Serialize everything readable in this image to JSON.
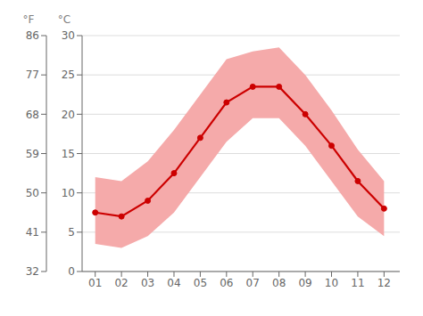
{
  "chart_data": {
    "type": "line",
    "x": [
      1,
      2,
      3,
      4,
      5,
      6,
      7,
      8,
      9,
      10,
      11,
      12
    ],
    "xlim": [
      0.5,
      12.6
    ],
    "xticks": [
      {
        "value": 1,
        "label": "01"
      },
      {
        "value": 2,
        "label": "02"
      },
      {
        "value": 3,
        "label": "03"
      },
      {
        "value": 4,
        "label": "04"
      },
      {
        "value": 5,
        "label": "05"
      },
      {
        "value": 6,
        "label": "06"
      },
      {
        "value": 7,
        "label": "07"
      },
      {
        "value": 8,
        "label": "08"
      },
      {
        "value": 9,
        "label": "09"
      },
      {
        "value": 10,
        "label": "10"
      },
      {
        "value": 11,
        "label": "11"
      },
      {
        "value": 12,
        "label": "12"
      }
    ],
    "y_label": "°C",
    "ylim": [
      0,
      30
    ],
    "yticks": [
      0,
      5,
      10,
      15,
      20,
      25,
      30
    ],
    "y2_label": "°F",
    "y2lim": [
      32,
      86
    ],
    "y2ticks": [
      32,
      41,
      50,
      59,
      68,
      77,
      86
    ],
    "grid": "y",
    "series": [
      {
        "type": "area",
        "color": "#f5aaaa",
        "low": [
          3.5,
          3.0,
          4.5,
          7.5,
          12.0,
          16.5,
          19.5,
          19.5,
          16.0,
          11.5,
          7.0,
          4.5
        ],
        "high": [
          12.0,
          11.5,
          14.0,
          18.0,
          22.5,
          27.0,
          28.0,
          28.5,
          25.0,
          20.5,
          15.5,
          11.5
        ]
      },
      {
        "type": "line",
        "color": "#cc0000",
        "marker": "o",
        "values": [
          7.5,
          7.0,
          9.0,
          12.5,
          17.0,
          21.5,
          23.5,
          23.5,
          20.0,
          16.0,
          11.5,
          8.0
        ]
      }
    ]
  }
}
